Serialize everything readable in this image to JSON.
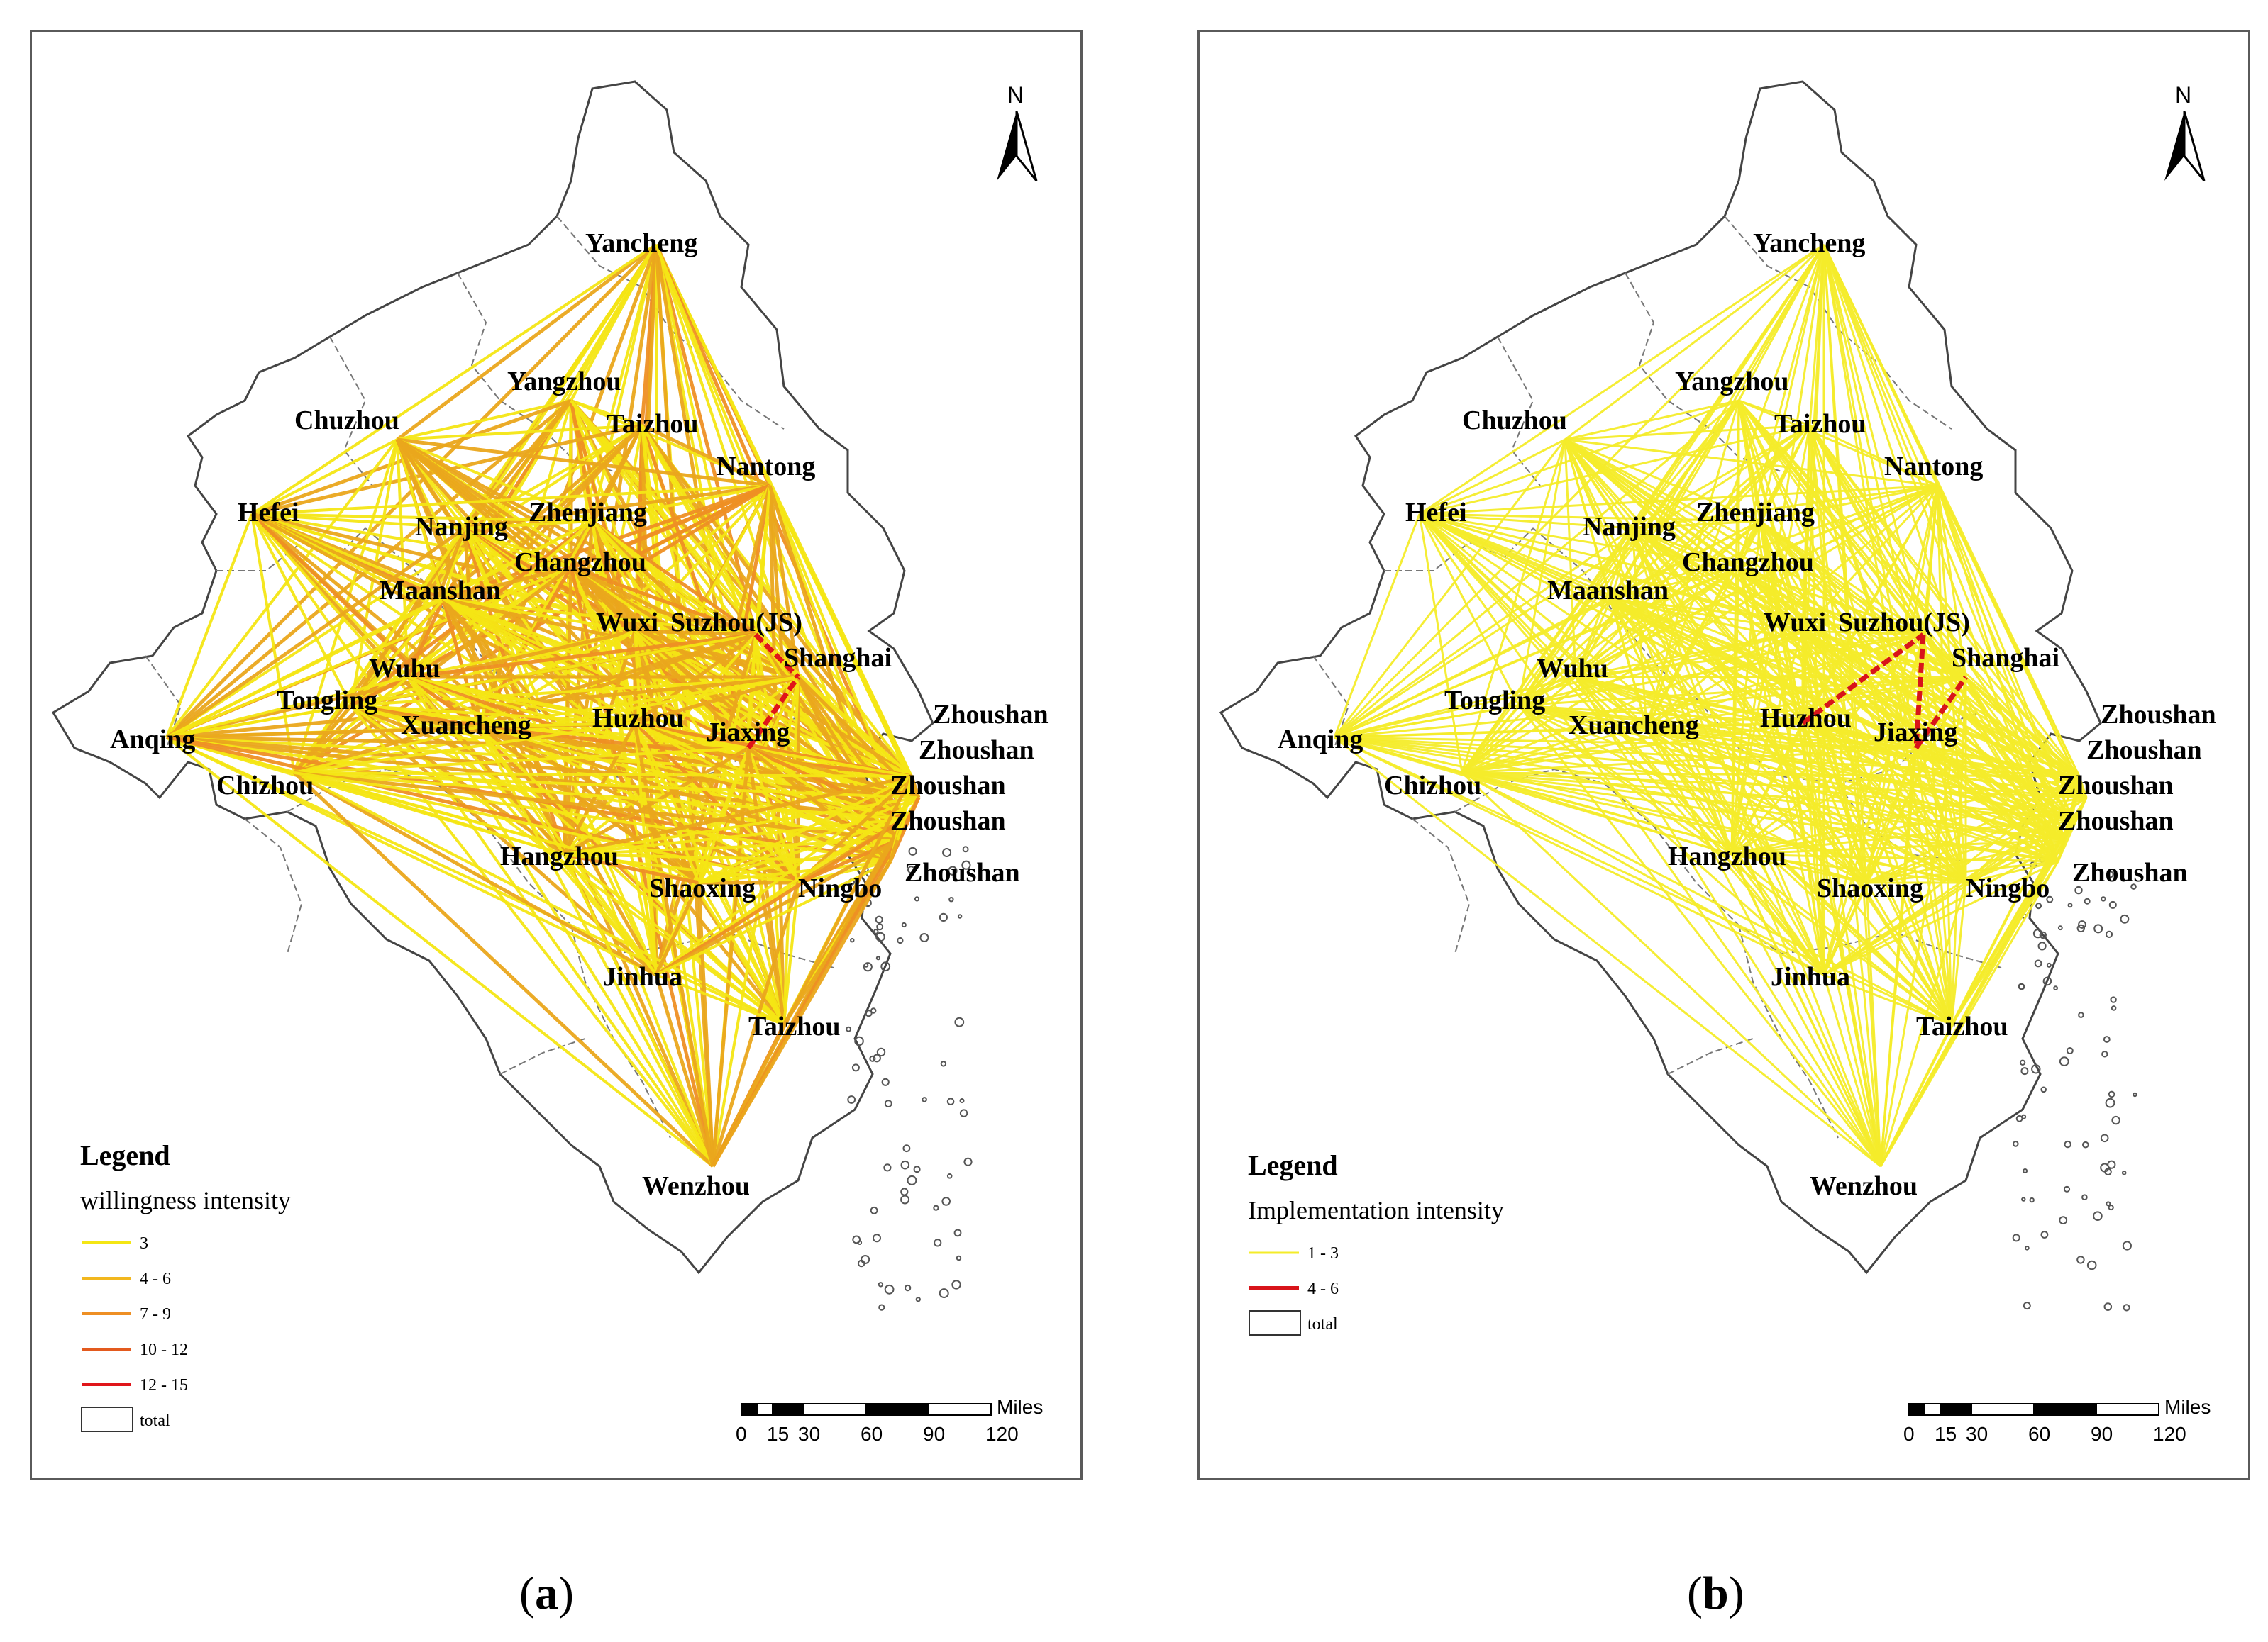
{
  "panels": [
    {
      "id": "a",
      "caption_letter": "a",
      "legend_title": "Legend",
      "legend_subtitle": "willingness intensity",
      "legend_items": [
        {
          "label": "3",
          "color": "#f4e614",
          "width": 4
        },
        {
          "label": "4 - 6",
          "color": "#f2b71e",
          "width": 4
        },
        {
          "label": "7 - 9",
          "color": "#ee8f24",
          "width": 4
        },
        {
          "label": "10 - 12",
          "color": "#e35a1e",
          "width": 4
        },
        {
          "label": "12 - 15",
          "color": "#e0151a",
          "width": 4
        }
      ],
      "boundary_label": "total",
      "base_color": "#f4e614",
      "accent_color": "#eaa61c",
      "strong_color": "#e0151a"
    },
    {
      "id": "b",
      "caption_letter": "b",
      "legend_title": "Legend",
      "legend_subtitle": "Implementation intensity",
      "legend_items": [
        {
          "label": "1 - 3",
          "color": "#f4ec2a",
          "width": 3
        },
        {
          "label": "4 - 6",
          "color": "#d8141a",
          "width": 6
        }
      ],
      "boundary_label": "total",
      "base_color": "#f4ec2a",
      "accent_color": "#f4ec2a",
      "strong_color": "#d8141a"
    }
  ],
  "cities": [
    {
      "name": "Yancheng"
    },
    {
      "name": "Yangzhou"
    },
    {
      "name": "Taizhou"
    },
    {
      "name": "Chuzhou"
    },
    {
      "name": "Nantong"
    },
    {
      "name": "Hefei"
    },
    {
      "name": "Nanjing"
    },
    {
      "name": "Zhenjiang"
    },
    {
      "name": "Changzhou"
    },
    {
      "name": "Maanshan"
    },
    {
      "name": "Wuxi"
    },
    {
      "name": "Suzhou(JS)"
    },
    {
      "name": "Shanghai"
    },
    {
      "name": "Wuhu"
    },
    {
      "name": "Tongling"
    },
    {
      "name": "Anqing"
    },
    {
      "name": "Xuancheng"
    },
    {
      "name": "Huzhou"
    },
    {
      "name": "Jiaxing"
    },
    {
      "name": "Chizhou"
    },
    {
      "name": "Hangzhou"
    },
    {
      "name": "Shaoxing"
    },
    {
      "name": "Ningbo"
    },
    {
      "name": "Jinhua"
    },
    {
      "name": "Taizhou"
    },
    {
      "name": "Wenzhou"
    },
    {
      "name": "Zhoushan"
    },
    {
      "name": "Zhoushan"
    },
    {
      "name": "Zhoushan"
    },
    {
      "name": "Zhoushan"
    },
    {
      "name": "Zhoushan"
    }
  ],
  "north_label": "N",
  "scale": {
    "unit": "Miles",
    "ticks": [
      "0",
      "15",
      "30",
      "60",
      "90",
      "120"
    ]
  },
  "strong_links_a": [
    [
      "Suzhou(JS)",
      "Shanghai"
    ],
    [
      "Jiaxing",
      "Shanghai"
    ]
  ],
  "strong_links_b": [
    [
      "Huzhou",
      "Suzhou(JS)"
    ],
    [
      "Jiaxing",
      "Shanghai"
    ],
    [
      "Suzhou(JS)",
      "Jiaxing"
    ]
  ]
}
